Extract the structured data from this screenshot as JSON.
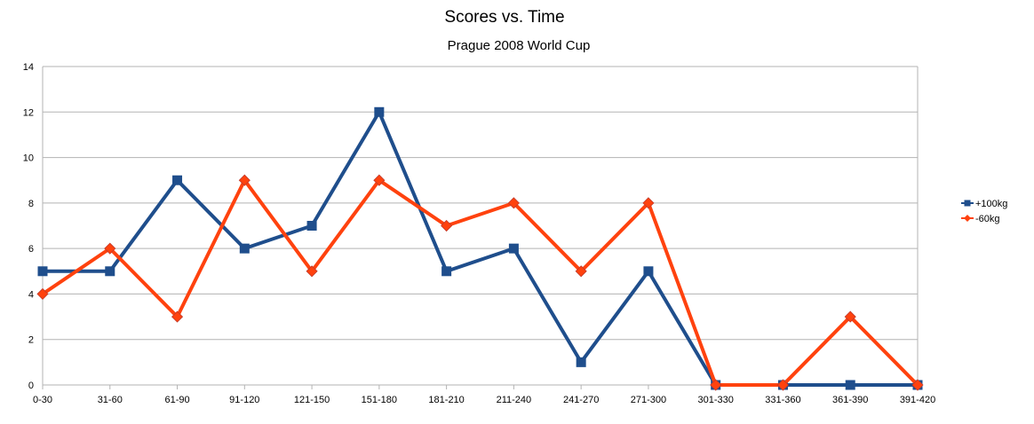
{
  "chart_data": {
    "type": "line",
    "title": "Scores vs. Time",
    "subtitle": "Prague 2008 World Cup",
    "xlabel": "",
    "ylabel": "",
    "categories": [
      "0-30",
      "31-60",
      "61-90",
      "91-120",
      "121-150",
      "151-180",
      "181-210",
      "211-240",
      "241-270",
      "271-300",
      "301-330",
      "331-360",
      "361-390",
      "391-420"
    ],
    "ylim": [
      0,
      14
    ],
    "yticks": [
      0,
      2,
      4,
      6,
      8,
      10,
      12,
      14
    ],
    "grid": true,
    "legend_position": "right",
    "series": [
      {
        "name": "+100kg",
        "color": "#1f4e8c",
        "marker": "square",
        "values": [
          5,
          5,
          9,
          6,
          7,
          12,
          5,
          6,
          1,
          5,
          0,
          0,
          0,
          0
        ]
      },
      {
        "name": "-60kg",
        "color": "#ff420e",
        "marker": "diamond",
        "values": [
          4,
          6,
          3,
          9,
          5,
          9,
          7,
          8,
          5,
          8,
          0,
          0,
          3,
          0
        ]
      }
    ]
  }
}
